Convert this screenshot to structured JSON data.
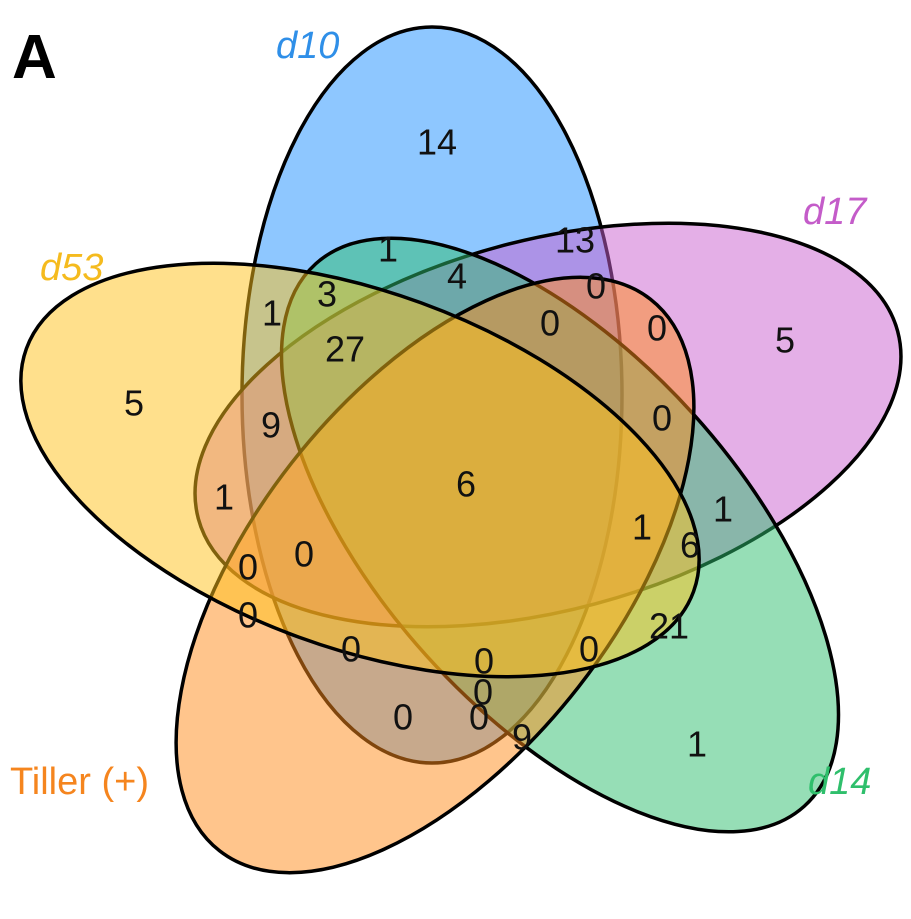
{
  "panel_letter": "A",
  "sets": [
    {
      "id": "d10",
      "label": "d10",
      "color": "#1e90ff",
      "label_color": "#2f8fe8",
      "italic": true
    },
    {
      "id": "d17",
      "label": "d17",
      "color": "#c95fd0",
      "label_color": "#c45cc9",
      "italic": true
    },
    {
      "id": "d14",
      "label": "d14",
      "color": "#2ebd6e",
      "label_color": "#2fbf6c",
      "italic": true
    },
    {
      "id": "tiller",
      "label": "Tiller (+)",
      "color": "#ff8c1a",
      "label_color": "#f5851e",
      "italic": false
    },
    {
      "id": "d53",
      "label": "d53",
      "color": "#ffc21a",
      "label_color": "#f5bb1e",
      "italic": true
    }
  ],
  "counts": [
    "14",
    "13",
    "1",
    "4",
    "0",
    "0",
    "3",
    "1",
    "27",
    "0",
    "5",
    "5",
    "9",
    "0",
    "6",
    "1",
    "1",
    "1",
    "6",
    "0",
    "0",
    "0",
    "21",
    "0",
    "0",
    "0",
    "0",
    "0",
    "0",
    "9",
    "1"
  ]
}
